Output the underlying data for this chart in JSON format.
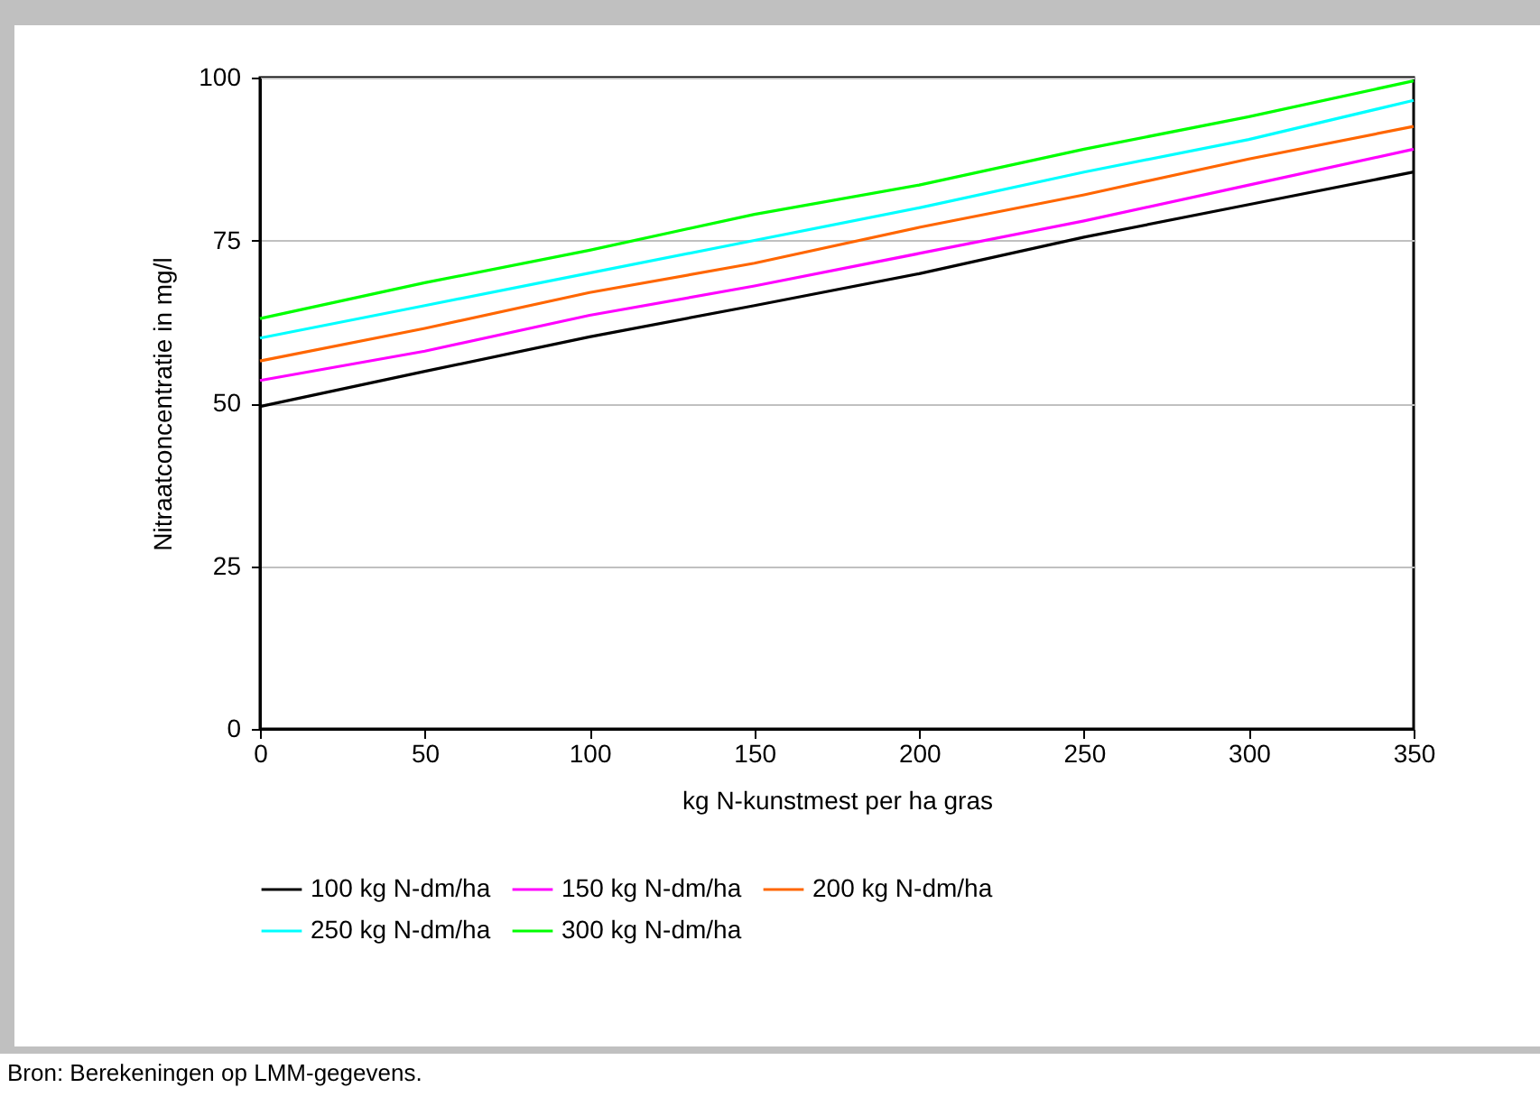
{
  "chart_data": {
    "type": "line",
    "xlabel": "kg N-kunstmest per ha gras",
    "ylabel": "Nitraatconcentratie in mg/l",
    "x": [
      0,
      50,
      100,
      150,
      200,
      250,
      300,
      350
    ],
    "series": [
      {
        "name": "100 kg N-dm/ha",
        "color": "#000000",
        "values": [
          49.5,
          54.9,
          60.2,
          65,
          69.9,
          75.5,
          80.5,
          85.5
        ]
      },
      {
        "name": "150 kg N-dm/ha",
        "color": "#ff00ff",
        "values": [
          53.5,
          58,
          63.5,
          68,
          73,
          78,
          83.5,
          89
        ]
      },
      {
        "name": "200 kg N-dm/ha",
        "color": "#ff6600",
        "values": [
          56.5,
          61.5,
          67,
          71.5,
          77,
          82,
          87.5,
          92.5
        ]
      },
      {
        "name": "250 kg N-dm/ha",
        "color": "#00ffff",
        "values": [
          60,
          65,
          70,
          75,
          80,
          85.5,
          90.5,
          96.5
        ]
      },
      {
        "name": "300 kg N-dm/ha",
        "color": "#00ff00",
        "values": [
          63,
          68.5,
          73.5,
          79,
          83.5,
          89,
          94,
          99.5
        ]
      }
    ],
    "xlim": [
      0,
      350
    ],
    "xticks": [
      0,
      50,
      100,
      150,
      200,
      250,
      300,
      350
    ],
    "ylim": [
      0,
      100
    ],
    "yticks": [
      0,
      25,
      50,
      75,
      100
    ],
    "grid": "y",
    "legend": "bottom",
    "marker": "none",
    "line_style": "solid",
    "annotations": [
      "Bron: Berekeningen op LMM-gegevens."
    ]
  }
}
